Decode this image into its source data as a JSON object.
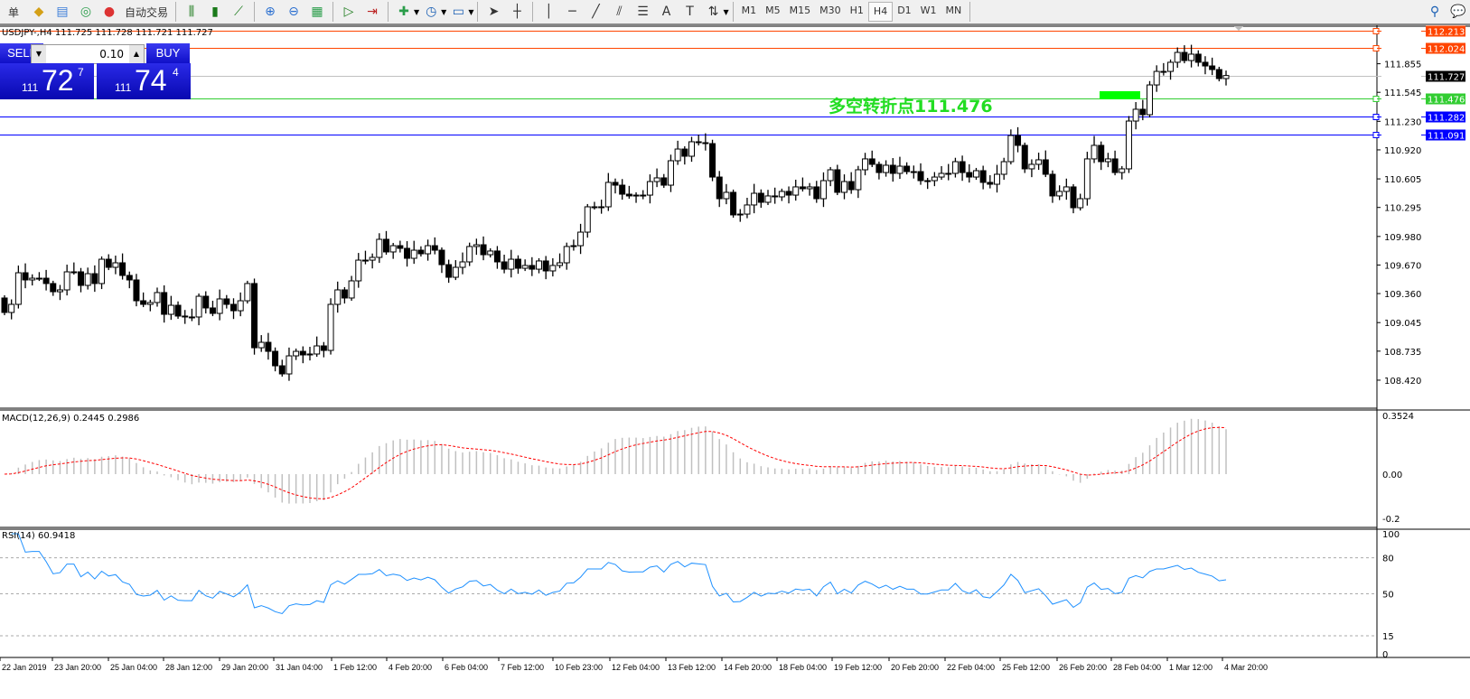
{
  "toolbar": {
    "cut_label": "单",
    "autotrade_label": "自动交易",
    "timeframes": [
      "M1",
      "M5",
      "M15",
      "M30",
      "H1",
      "H4",
      "D1",
      "W1",
      "MN"
    ],
    "active_timeframe": "H4"
  },
  "chart": {
    "title": "USDJPY-,H4  111.725 111.728 111.721 111.727",
    "annotation": "多空转折点111.476",
    "annotation_color": "#22dd22",
    "price_axis": [
      "111.855",
      "111.545",
      "111.230",
      "110.920",
      "110.605",
      "110.295",
      "109.980",
      "109.670",
      "109.360",
      "109.045",
      "108.735",
      "108.420"
    ],
    "hlines": [
      {
        "price": 112.213,
        "label": "112.213",
        "color": "#ff4500"
      },
      {
        "price": 112.024,
        "label": "112.024",
        "color": "#ff4500"
      },
      {
        "price": 111.727,
        "label": "111.727",
        "color": "#000000",
        "line": "#c0c0c0"
      },
      {
        "price": 111.476,
        "label": "111.476",
        "color": "#32cd32"
      },
      {
        "price": 111.282,
        "label": "111.282",
        "color": "#0000ff"
      },
      {
        "price": 111.091,
        "label": "111.091",
        "color": "#0000ff"
      }
    ],
    "first_open": 109.312,
    "closes": [
      109.155,
      109.243,
      109.586,
      109.508,
      109.527,
      109.527,
      109.469,
      109.38,
      109.4,
      109.596,
      109.596,
      109.449,
      109.576,
      109.469,
      109.733,
      109.645,
      109.694,
      109.557,
      109.508,
      109.282,
      109.243,
      109.263,
      109.371,
      109.135,
      109.233,
      109.116,
      109.106,
      109.106,
      109.331,
      109.204,
      109.145,
      109.302,
      109.243,
      109.174,
      109.282,
      109.469,
      108.772,
      108.831,
      108.733,
      108.576,
      108.488,
      108.684,
      108.733,
      108.694,
      108.704,
      108.792,
      108.743,
      109.243,
      109.4,
      109.312,
      109.498,
      109.723,
      109.723,
      109.753,
      109.949,
      109.812,
      109.88,
      109.851,
      109.743,
      109.831,
      109.792,
      109.88,
      109.831,
      109.674,
      109.537,
      109.645,
      109.704,
      109.871,
      109.89,
      109.782,
      109.822,
      109.704,
      109.625,
      109.733,
      109.635,
      109.665,
      109.625,
      109.714,
      109.606,
      109.665,
      109.694,
      109.871,
      109.88,
      110.027,
      110.302,
      110.302,
      110.302,
      110.567,
      110.537,
      110.439,
      110.42,
      110.429,
      110.429,
      110.576,
      110.616,
      110.537,
      110.802,
      110.929,
      110.851,
      111.008,
      110.998,
      110.988,
      110.625,
      110.39,
      110.459,
      110.214,
      110.223,
      110.322,
      110.449,
      110.351,
      110.42,
      110.41,
      110.469,
      110.429,
      110.518,
      110.498,
      110.518,
      110.39,
      110.586,
      110.704,
      110.459,
      110.576,
      110.488,
      110.704,
      110.822,
      110.763,
      110.674,
      110.753,
      110.665,
      110.743,
      110.684,
      110.684,
      110.586,
      110.586,
      110.625,
      110.665,
      110.665,
      110.792,
      110.674,
      110.625,
      110.694,
      110.567,
      110.547,
      110.655,
      110.792,
      111.076,
      110.969,
      110.714,
      110.763,
      110.812,
      110.655,
      110.42,
      110.469,
      110.518,
      110.292,
      110.39,
      110.822,
      110.969,
      110.792,
      110.822,
      110.674,
      110.714,
      111.233,
      111.361,
      111.302,
      111.625,
      111.772,
      111.772,
      111.871,
      111.978,
      111.89,
      111.959,
      111.871,
      111.831,
      111.792,
      111.694,
      111.727
    ]
  },
  "trade_panel": {
    "sell_label": "SELL",
    "buy_label": "BUY",
    "lot": "0.10",
    "sell_prefix": "111",
    "sell_main": "72",
    "sell_sup": "7",
    "buy_prefix": "111",
    "buy_main": "74",
    "buy_sup": "4"
  },
  "macd": {
    "label": "MACD(12,26,9) 0.2445 0.2986",
    "axis": [
      "0.3524",
      "0.00",
      "-0.2"
    ],
    "hist_color": "#c0c0c0",
    "signal_color": "#ff0000"
  },
  "rsi": {
    "label": "RSI(14) 60.9418",
    "axis": [
      "100",
      "80",
      "50",
      "15",
      "0"
    ],
    "levels": [
      80,
      50,
      15
    ],
    "line_color": "#1e90ff"
  },
  "time_axis": [
    "22 Jan 2019",
    "23 Jan 20:00",
    "25 Jan 04:00",
    "28 Jan 12:00",
    "29 Jan 20:00",
    "31 Jan 04:00",
    "1 Feb 12:00",
    "4 Feb 20:00",
    "6 Feb 04:00",
    "7 Feb 12:00",
    "10 Feb 23:00",
    "12 Feb 04:00",
    "13 Feb 12:00",
    "14 Feb 20:00",
    "18 Feb 04:00",
    "19 Feb 12:00",
    "20 Feb 20:00",
    "22 Feb 04:00",
    "25 Feb 12:00",
    "26 Feb 20:00",
    "28 Feb 04:00",
    "1 Mar 12:00",
    "4 Mar 20:00"
  ]
}
